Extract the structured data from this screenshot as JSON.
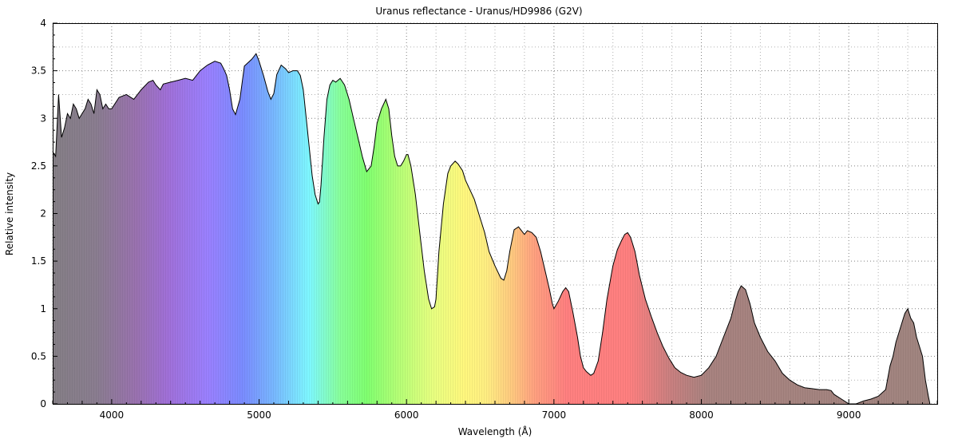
{
  "chart_data": {
    "type": "area",
    "title": "Uranus reflectance - Uranus/HD9986 (G2V)",
    "xlabel": "Wavelength (Å)",
    "ylabel": "Relative intensity",
    "xlim": [
      3600,
      9600
    ],
    "ylim": [
      0,
      4
    ],
    "x_ticks": [
      4000,
      5000,
      6000,
      7000,
      8000,
      9000
    ],
    "x_tick_labels": [
      "4000",
      "5000",
      "6000",
      "7000",
      "8000",
      "9000"
    ],
    "y_ticks": [
      0,
      0.5,
      1,
      1.5,
      2,
      2.5,
      3,
      3.5,
      4
    ],
    "y_tick_labels": [
      "0",
      "0.5",
      "1",
      "1.5",
      "2",
      "2.5",
      "3",
      "3.5",
      "4"
    ],
    "grid": true,
    "series": [
      {
        "x": [
          3600,
          3620,
          3640,
          3660,
          3680,
          3700,
          3720,
          3740,
          3760,
          3780,
          3800,
          3820,
          3840,
          3860,
          3880,
          3900,
          3920,
          3940,
          3960,
          3980,
          4000,
          4050,
          4100,
          4150,
          4200,
          4250,
          4280,
          4300,
          4330,
          4350,
          4400,
          4450,
          4500,
          4550,
          4600,
          4650,
          4700,
          4740,
          4760,
          4780,
          4800,
          4820,
          4840,
          4870,
          4900,
          4950,
          4980,
          5000,
          5030,
          5060,
          5080,
          5100,
          5120,
          5150,
          5180,
          5200,
          5230,
          5260,
          5280,
          5300,
          5320,
          5340,
          5360,
          5380,
          5400,
          5410,
          5420,
          5440,
          5460,
          5480,
          5500,
          5520,
          5550,
          5580,
          5610,
          5640,
          5670,
          5700,
          5730,
          5760,
          5780,
          5800,
          5830,
          5860,
          5880,
          5900,
          5920,
          5940,
          5960,
          5980,
          6000,
          6010,
          6030,
          6060,
          6090,
          6120,
          6150,
          6170,
          6190,
          6200,
          6220,
          6250,
          6280,
          6300,
          6330,
          6350,
          6380,
          6400,
          6430,
          6460,
          6500,
          6530,
          6560,
          6600,
          6640,
          6660,
          6680,
          6700,
          6730,
          6760,
          6800,
          6820,
          6850,
          6880,
          6910,
          6940,
          6970,
          6990,
          7000,
          7030,
          7060,
          7080,
          7100,
          7130,
          7160,
          7180,
          7200,
          7220,
          7250,
          7270,
          7300,
          7330,
          7360,
          7400,
          7430,
          7460,
          7480,
          7500,
          7520,
          7550,
          7580,
          7620,
          7660,
          7700,
          7740,
          7780,
          7820,
          7860,
          7900,
          7950,
          8000,
          8050,
          8100,
          8150,
          8200,
          8230,
          8250,
          8270,
          8300,
          8330,
          8360,
          8400,
          8450,
          8500,
          8550,
          8600,
          8650,
          8700,
          8750,
          8800,
          8850,
          8880,
          8900,
          8950,
          8980,
          9000,
          9050,
          9100,
          9150,
          9200,
          9250,
          9280,
          9300,
          9320,
          9340,
          9360,
          9380,
          9400,
          9420,
          9440,
          9460,
          9480,
          9500,
          9520,
          9540,
          9550
        ],
        "y": [
          2.65,
          2.6,
          3.25,
          2.8,
          2.9,
          3.05,
          3.0,
          3.15,
          3.1,
          3.0,
          3.05,
          3.1,
          3.2,
          3.15,
          3.05,
          3.3,
          3.25,
          3.1,
          3.15,
          3.1,
          3.1,
          3.22,
          3.25,
          3.2,
          3.3,
          3.38,
          3.4,
          3.35,
          3.3,
          3.36,
          3.38,
          3.4,
          3.42,
          3.4,
          3.5,
          3.56,
          3.6,
          3.58,
          3.52,
          3.45,
          3.3,
          3.1,
          3.04,
          3.2,
          3.55,
          3.62,
          3.68,
          3.6,
          3.45,
          3.28,
          3.2,
          3.26,
          3.46,
          3.56,
          3.52,
          3.48,
          3.5,
          3.5,
          3.45,
          3.3,
          3.0,
          2.7,
          2.4,
          2.2,
          2.1,
          2.12,
          2.3,
          2.8,
          3.2,
          3.35,
          3.4,
          3.38,
          3.42,
          3.35,
          3.2,
          3.0,
          2.8,
          2.6,
          2.44,
          2.5,
          2.7,
          2.95,
          3.1,
          3.2,
          3.1,
          2.82,
          2.6,
          2.5,
          2.5,
          2.55,
          2.62,
          2.62,
          2.5,
          2.2,
          1.8,
          1.4,
          1.1,
          1.0,
          1.02,
          1.1,
          1.6,
          2.1,
          2.42,
          2.5,
          2.55,
          2.52,
          2.45,
          2.35,
          2.25,
          2.15,
          1.95,
          1.8,
          1.6,
          1.45,
          1.32,
          1.3,
          1.4,
          1.6,
          1.83,
          1.86,
          1.78,
          1.82,
          1.8,
          1.75,
          1.6,
          1.4,
          1.2,
          1.05,
          1.0,
          1.08,
          1.18,
          1.22,
          1.18,
          0.95,
          0.7,
          0.5,
          0.38,
          0.34,
          0.3,
          0.32,
          0.45,
          0.75,
          1.1,
          1.45,
          1.62,
          1.72,
          1.78,
          1.8,
          1.75,
          1.6,
          1.35,
          1.1,
          0.92,
          0.75,
          0.6,
          0.48,
          0.38,
          0.33,
          0.3,
          0.28,
          0.3,
          0.38,
          0.5,
          0.7,
          0.9,
          1.08,
          1.18,
          1.24,
          1.2,
          1.05,
          0.85,
          0.7,
          0.55,
          0.45,
          0.32,
          0.25,
          0.2,
          0.17,
          0.16,
          0.15,
          0.15,
          0.14,
          0.1,
          0.05,
          0.02,
          0.0,
          0.0,
          0.03,
          0.05,
          0.08,
          0.15,
          0.4,
          0.5,
          0.65,
          0.75,
          0.85,
          0.95,
          1.0,
          0.9,
          0.85,
          0.7,
          0.6,
          0.5,
          0.25,
          0.08,
          0.0
        ]
      }
    ]
  }
}
